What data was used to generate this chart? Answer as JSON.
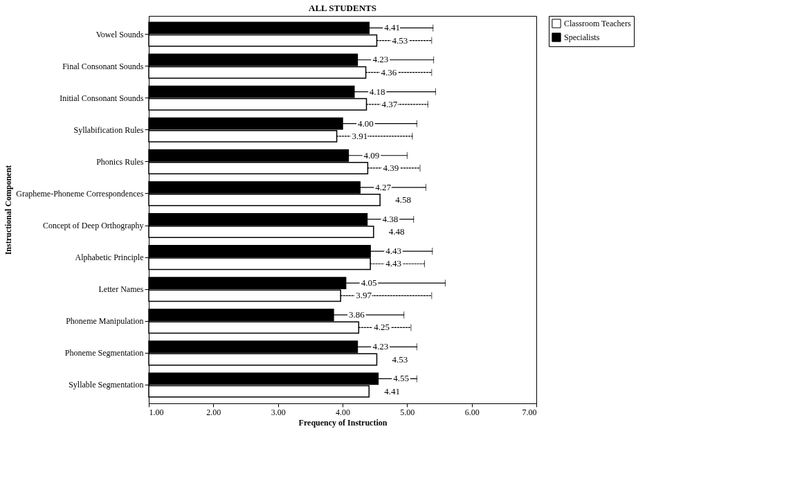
{
  "chart_data": {
    "type": "bar",
    "orientation": "horizontal",
    "title": "ALL STUDENTS",
    "xlabel": "Frequency of Instruction",
    "ylabel": "Instructional Component",
    "categories": [
      "Vowel Sounds",
      "Final Consonant Sounds",
      "Initial Consonant Sounds",
      "Syllabification Rules",
      "Phonics Rules",
      "Grapheme-Phoneme Correspondences",
      "Concept of Deep Orthography",
      "Alphabetic Principle",
      "Letter Names",
      "Phoneme Manipulation",
      "Phoneme Segmentation",
      "Syllable Segmentation"
    ],
    "series": [
      {
        "name": "Classroom Teachers",
        "color": "#ffffff",
        "line_style": "dotted",
        "values": [
          4.53,
          4.36,
          4.37,
          3.91,
          4.39,
          4.58,
          4.48,
          4.43,
          3.97,
          4.25,
          4.53,
          4.41
        ],
        "value_labels": [
          "4.53",
          "4.36",
          "4.37",
          "3.91",
          "4.39",
          "4.58",
          "4.48",
          "4.43",
          "3.97",
          "4.25",
          "4.53",
          "4.41"
        ],
        "errors": [
          [
            4.53,
            5.38
          ],
          [
            4.36,
            5.38
          ],
          [
            4.37,
            5.32
          ],
          [
            3.91,
            5.08
          ],
          [
            4.39,
            5.2
          ],
          null,
          null,
          [
            4.43,
            5.27
          ],
          [
            3.97,
            5.38
          ],
          [
            4.25,
            5.06
          ],
          null,
          null
        ]
      },
      {
        "name": "Specialists",
        "color": "#000000",
        "line_style": "solid",
        "values": [
          4.41,
          4.23,
          4.18,
          4.0,
          4.09,
          4.27,
          4.38,
          4.43,
          4.05,
          3.86,
          4.23,
          4.55
        ],
        "value_labels": [
          "4.41",
          "4.23",
          "4.18",
          "4.00",
          "4.09",
          "4.27",
          "4.38",
          "4.43",
          "4.05",
          "3.86",
          "4.23",
          "4.55"
        ],
        "errors": [
          [
            4.41,
            5.4
          ],
          [
            4.23,
            5.41
          ],
          [
            4.18,
            5.44
          ],
          [
            4.0,
            5.15
          ],
          [
            4.09,
            5.0
          ],
          [
            4.27,
            5.29
          ],
          [
            4.38,
            5.1
          ],
          [
            4.43,
            5.39
          ],
          [
            4.05,
            5.59
          ],
          [
            3.86,
            4.95
          ],
          [
            4.23,
            5.15
          ],
          [
            4.55,
            5.15
          ]
        ]
      }
    ],
    "xlim": [
      1,
      7
    ],
    "xticks": [
      {
        "value": 1,
        "label": "1.00"
      },
      {
        "value": 2,
        "label": "2.00"
      },
      {
        "value": 3,
        "label": "3.00"
      },
      {
        "value": 4,
        "label": "4.00"
      },
      {
        "value": 5,
        "label": "5.00"
      },
      {
        "value": 6,
        "label": "6.00"
      },
      {
        "value": 7,
        "label": "7.00"
      }
    ],
    "grid": false,
    "legend": "right"
  }
}
